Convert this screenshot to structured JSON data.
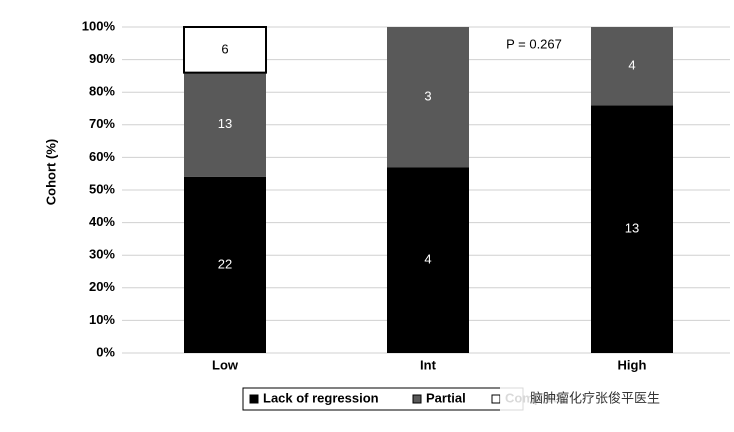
{
  "chart_data": {
    "type": "stacked_bar",
    "y_label": "Cohort (%)",
    "annotation": "P = 0.267",
    "watermark": "脑肿瘤化疗张俊平医生",
    "categories": [
      "Low",
      "Int",
      "High"
    ],
    "series": [
      {
        "name": "Lack of regression",
        "color": "#000000",
        "values": [
          54,
          57,
          76
        ],
        "counts": [
          22,
          4,
          13
        ]
      },
      {
        "name": "Partial",
        "color": "#595959",
        "values": [
          32,
          43,
          24
        ],
        "counts": [
          13,
          3,
          4
        ]
      },
      {
        "name": "Complete",
        "color": "#ffffff",
        "values": [
          14,
          0,
          0
        ],
        "counts": [
          6,
          null,
          null
        ]
      }
    ],
    "ylim": [
      0,
      100
    ],
    "yticks": [
      {
        "value": 0,
        "label": "0%"
      },
      {
        "value": 10,
        "label": "10%"
      },
      {
        "value": 20,
        "label": "20%"
      },
      {
        "value": 30,
        "label": "30%"
      },
      {
        "value": 40,
        "label": "40%"
      },
      {
        "value": 50,
        "label": "50%"
      },
      {
        "value": 60,
        "label": "60%"
      },
      {
        "value": 70,
        "label": "70%"
      },
      {
        "value": 80,
        "label": "80%"
      },
      {
        "value": 90,
        "label": "90%"
      },
      {
        "value": 100,
        "label": "100%"
      }
    ],
    "grid": true
  }
}
